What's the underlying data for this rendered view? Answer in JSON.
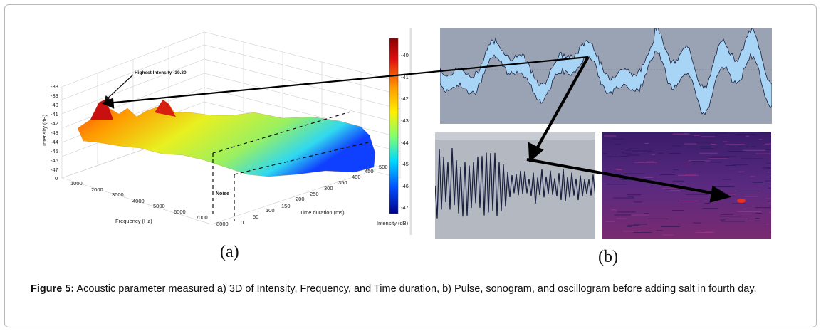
{
  "panel_a": {
    "yaxis_label": "Intensity (dB)",
    "yticks": [
      "-38",
      "-39",
      "-40",
      "-41",
      "-42",
      "-43",
      "-44",
      "-45",
      "-46",
      "-47"
    ],
    "freq_label": "Frequency (Hz)",
    "freq_ticks": [
      "0",
      "1000",
      "2000",
      "3000",
      "4000",
      "5000",
      "6000",
      "7000",
      "8000"
    ],
    "time_label": "Time duration (ms)",
    "time_ticks": [
      "0",
      "50",
      "100",
      "150",
      "200",
      "250",
      "300",
      "350",
      "400",
      "450",
      "500"
    ],
    "annotation_peak": "Highest Intensity -39.30",
    "annotation_noise": "Noise",
    "colorbar_ticks": [
      "-40",
      "-41",
      "-42",
      "-43",
      "-44",
      "-45",
      "-46",
      "-47"
    ],
    "colorbar_label": "Intensity (dB)"
  },
  "sub_labels": {
    "a": "(a)",
    "b": "(b)"
  },
  "caption": {
    "label": "Figure 5:",
    "text": "Acoustic parameter measured a) 3D of Intensity, Frequency, and Time duration, b) Pulse, sonogram, and oscillogram before adding salt in fourth day."
  },
  "colors": {
    "oscillogram_bg": "#9aa3b4",
    "wave_fill": "#a8d4f5",
    "wave_line": "#1a2040",
    "spectrogram_bg": "#5a2a78"
  }
}
